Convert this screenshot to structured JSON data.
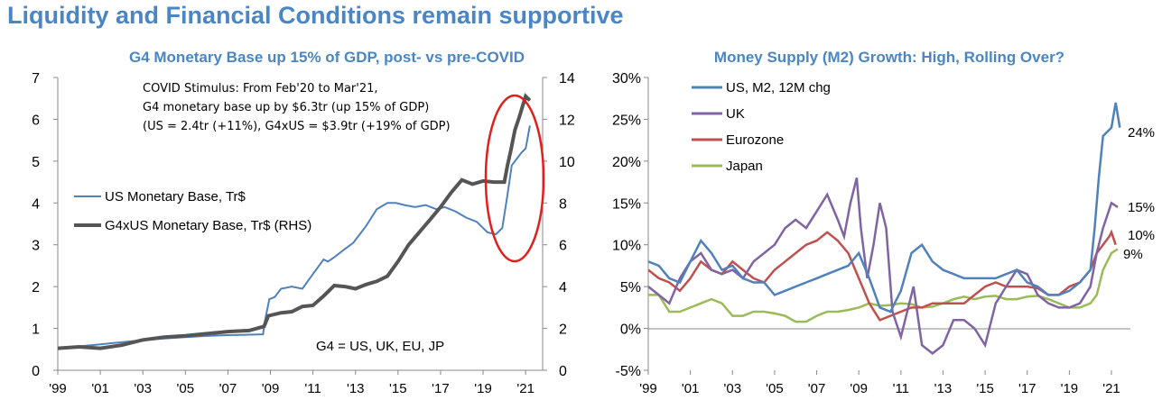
{
  "page_title": "Liquidity and Financial Conditions remain supportive",
  "colors": {
    "title": "#4a86c5",
    "us_line": "#4f81bd",
    "g4_line": "#555555",
    "uk": "#8064a2",
    "eurozone": "#c0504d",
    "japan": "#9bbb59",
    "circle": "#e0201c"
  },
  "chart_data": [
    {
      "type": "line",
      "title": "G4 Monetary Base up 15% of GDP, post- vs pre-COVID",
      "x_tick_labels": [
        "'99",
        "'01",
        "'03",
        "'05",
        "'07",
        "'09",
        "'11",
        "'13",
        "'15",
        "'17",
        "'19",
        "'21"
      ],
      "x_range": [
        1999,
        2021.8
      ],
      "y_left_ticks": [
        "0",
        "1",
        "2",
        "3",
        "4",
        "5",
        "6",
        "7"
      ],
      "y_left_range": [
        0,
        7
      ],
      "y_right_ticks": [
        "0",
        "2",
        "4",
        "6",
        "8",
        "10",
        "12",
        "14"
      ],
      "y_right_range": [
        0,
        14
      ],
      "legend_position": "left-middle",
      "annotation_lines": [
        "COVID Stimulus: From Feb'20 to Mar'21,",
        "G4 monetary base up by $6.3tr (up 15% of GDP)",
        "(US = 2.4tr (+11%), G4xUS = $3.9tr (+19% of GDP)"
      ],
      "footnote": "G4 = US, UK, EU, JP",
      "series": [
        {
          "name": "US Monetary Base, Tr$",
          "axis": "left",
          "x": [
            1999,
            2000,
            2001,
            2002,
            2003,
            2004,
            2005,
            2006,
            2007,
            2008.65,
            2008.75,
            2008.95,
            2009.2,
            2009.5,
            2010,
            2010.5,
            2011,
            2011.5,
            2011.7,
            2012,
            2012.5,
            2012.9,
            2013.5,
            2014,
            2014.5,
            2014.9,
            2015.3,
            2015.8,
            2016.3,
            2016.8,
            2017.2,
            2017.7,
            2018.2,
            2018.7,
            2019.2,
            2019.6,
            2019.9,
            2020.15,
            2020.35,
            2020.5,
            2020.8,
            2021,
            2021.2
          ],
          "y": [
            0.52,
            0.57,
            0.62,
            0.67,
            0.72,
            0.76,
            0.79,
            0.82,
            0.84,
            0.86,
            1.2,
            1.7,
            1.75,
            1.95,
            2.0,
            1.95,
            2.3,
            2.65,
            2.6,
            2.7,
            2.9,
            3.05,
            3.45,
            3.85,
            4.0,
            4.0,
            3.95,
            3.9,
            3.95,
            3.85,
            3.9,
            3.8,
            3.65,
            3.55,
            3.3,
            3.25,
            3.4,
            4.2,
            4.9,
            5.0,
            5.2,
            5.3,
            5.85
          ]
        },
        {
          "name": "G4xUS Monetary Base, Tr$ (RHS)",
          "axis": "right",
          "x": [
            1999,
            2000,
            2001,
            2002,
            2003,
            2004,
            2005,
            2006,
            2007,
            2008,
            2008.7,
            2008.9,
            2009.5,
            2010,
            2010.5,
            2011,
            2011.5,
            2012,
            2012.5,
            2013,
            2013.5,
            2014,
            2014.5,
            2015,
            2015.5,
            2016,
            2016.5,
            2017,
            2017.5,
            2018,
            2018.5,
            2019,
            2019.5,
            2020,
            2020.15,
            2020.3,
            2020.5,
            2020.7,
            2020.85,
            2021,
            2021.2
          ],
          "y": [
            1.05,
            1.12,
            1.05,
            1.2,
            1.45,
            1.58,
            1.65,
            1.75,
            1.85,
            1.9,
            2.1,
            2.6,
            2.75,
            2.8,
            3.05,
            3.1,
            3.55,
            4.05,
            4.0,
            3.9,
            4.1,
            4.25,
            4.5,
            5.2,
            6.0,
            6.6,
            7.2,
            7.8,
            8.5,
            9.1,
            8.9,
            9.05,
            9.0,
            9.0,
            9.8,
            10.5,
            11.5,
            12.1,
            12.6,
            13.1,
            12.9
          ]
        }
      ]
    },
    {
      "type": "line",
      "title": "Money Supply (M2) Growth: High, Rolling Over?",
      "x_tick_labels": [
        "'99",
        "'01",
        "'03",
        "'05",
        "'07",
        "'09",
        "'11",
        "'13",
        "'15",
        "'17",
        "'19",
        "'21"
      ],
      "x_range": [
        1999,
        2021.9
      ],
      "y_ticks": [
        "-5%",
        "0%",
        "5%",
        "10%",
        "15%",
        "20%",
        "25%",
        "30%"
      ],
      "y_range": [
        -5,
        30
      ],
      "legend_position": "top-left",
      "end_labels": [
        "24%",
        "15%",
        "10%",
        "9%"
      ],
      "series": [
        {
          "name": "US, M2, 12M chg",
          "x": [
            1999,
            1999.5,
            2000,
            2000.5,
            2001,
            2001.5,
            2002,
            2002.5,
            2003,
            2003.5,
            2004,
            2004.5,
            2005,
            2005.5,
            2006,
            2006.5,
            2007,
            2007.5,
            2008,
            2008.5,
            2009,
            2009.5,
            2010,
            2010.5,
            2011,
            2011.5,
            2012,
            2012.5,
            2013,
            2013.5,
            2014,
            2014.5,
            2015,
            2015.5,
            2016,
            2016.5,
            2017,
            2017.5,
            2018,
            2018.5,
            2019,
            2019.5,
            2020,
            2020.2,
            2020.4,
            2020.6,
            2020.8,
            2021,
            2021.2,
            2021.4
          ],
          "y": [
            8,
            7.5,
            6,
            5.5,
            8,
            10.5,
            9,
            7,
            7.5,
            6,
            5.5,
            5.5,
            4,
            4.5,
            5,
            5.5,
            6,
            6.5,
            7,
            7.5,
            9,
            6,
            2.5,
            2,
            4.5,
            9,
            10,
            8,
            7,
            6.5,
            6,
            6,
            6,
            6,
            6.5,
            7,
            5.5,
            5,
            4,
            4,
            4.5,
            5.5,
            7,
            12,
            18,
            23,
            23.5,
            24,
            27,
            24
          ]
        },
        {
          "name": "UK",
          "x": [
            1999,
            1999.5,
            2000,
            2000.5,
            2001,
            2001.5,
            2002,
            2002.5,
            2003,
            2003.5,
            2004,
            2004.5,
            2005,
            2005.5,
            2006,
            2006.5,
            2007,
            2007.5,
            2008,
            2008.3,
            2008.6,
            2008.9,
            2009.1,
            2009.4,
            2009.7,
            2010,
            2010.3,
            2010.6,
            2011,
            2011.3,
            2011.6,
            2012,
            2012.5,
            2013,
            2013.5,
            2014,
            2014.5,
            2015,
            2015.5,
            2016,
            2016.5,
            2017,
            2017.5,
            2018,
            2018.5,
            2019,
            2019.5,
            2020,
            2020.3,
            2020.6,
            2021,
            2021.3
          ],
          "y": [
            5,
            4,
            3,
            6,
            8,
            9,
            7,
            6.5,
            7,
            6,
            8,
            9,
            10,
            12,
            13,
            12,
            14,
            16,
            13,
            11,
            15,
            18,
            12,
            6,
            10,
            15,
            12,
            2,
            -1,
            2,
            5,
            -2,
            -3,
            -2,
            1,
            1,
            0,
            -2,
            3,
            5,
            7,
            6.5,
            4,
            3,
            2.5,
            2.5,
            3,
            5,
            9,
            12,
            15,
            14.5
          ]
        },
        {
          "name": "Eurozone",
          "x": [
            1999,
            1999.5,
            2000,
            2000.5,
            2001,
            2001.5,
            2002,
            2002.5,
            2003,
            2003.5,
            2004,
            2004.5,
            2005,
            2005.5,
            2006,
            2006.5,
            2007,
            2007.5,
            2008,
            2008.5,
            2009,
            2009.5,
            2010,
            2010.5,
            2011,
            2011.5,
            2012,
            2012.5,
            2013,
            2013.5,
            2014,
            2014.5,
            2015,
            2015.5,
            2016,
            2016.5,
            2017,
            2017.5,
            2018,
            2018.5,
            2019,
            2019.5,
            2020,
            2020.3,
            2020.6,
            2020.9,
            2021,
            2021.2
          ],
          "y": [
            7,
            6,
            5.5,
            4.5,
            6,
            8,
            7,
            6.5,
            8,
            7,
            6,
            5.5,
            7,
            8,
            9,
            10,
            10.5,
            11.5,
            10.5,
            9,
            6,
            3,
            1,
            1.5,
            2,
            2.5,
            2.5,
            3,
            3,
            3,
            3,
            4,
            5,
            5.5,
            5,
            5,
            5,
            4.8,
            4,
            4,
            5,
            5.5,
            7,
            9,
            10,
            11,
            11.5,
            10
          ]
        },
        {
          "name": "Japan",
          "x": [
            1999,
            1999.5,
            2000,
            2000.5,
            2001,
            2001.5,
            2002,
            2002.5,
            2003,
            2003.5,
            2004,
            2004.5,
            2005,
            2005.5,
            2006,
            2006.5,
            2007,
            2007.5,
            2008,
            2008.5,
            2009,
            2009.5,
            2010,
            2010.5,
            2011,
            2011.5,
            2012,
            2012.5,
            2013,
            2013.5,
            2014,
            2014.5,
            2015,
            2015.5,
            2016,
            2016.5,
            2017,
            2017.5,
            2018,
            2018.5,
            2019,
            2019.5,
            2020,
            2020.3,
            2020.6,
            2020.9,
            2021,
            2021.3
          ],
          "y": [
            4,
            4,
            2,
            2,
            2.5,
            3,
            3.5,
            3,
            1.5,
            1.5,
            2,
            2,
            1.8,
            1.5,
            0.8,
            0.8,
            1.5,
            2,
            2,
            2.2,
            2.5,
            3,
            2.7,
            2.8,
            3,
            2.9,
            2.5,
            2.6,
            3,
            3.5,
            3.8,
            3.5,
            3.8,
            3.9,
            3.5,
            3.5,
            3.8,
            3.9,
            3.5,
            3.0,
            2.5,
            2.5,
            3,
            4,
            7,
            8.5,
            9,
            9.5
          ]
        }
      ]
    }
  ]
}
